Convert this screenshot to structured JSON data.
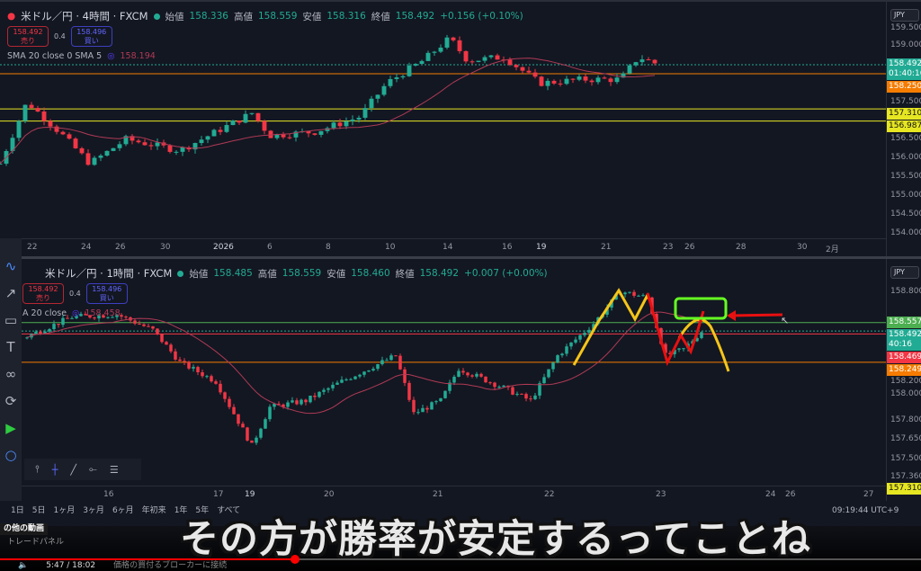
{
  "top": {
    "symbol": "米ドル／円 · 4時間 · FXCM",
    "ohlc": [
      {
        "k": "始値",
        "v": "158.336"
      },
      {
        "k": "高値",
        "v": "158.559"
      },
      {
        "k": "安値",
        "v": "158.316"
      },
      {
        "k": "終値",
        "v": "158.492"
      }
    ],
    "change": "+0.156 (+0.10%)",
    "sell_price": "158.492",
    "sell_label": "売り",
    "spread": "0.4",
    "buy_price": "158.496",
    "buy_label": "買い",
    "sma_label": "SMA 20 close 0 SMA 5",
    "sma_value": "158.194",
    "currency": "JPY",
    "yticks": [
      "159.500",
      "159.000",
      "157.500",
      "156.500",
      "156.000",
      "155.500",
      "155.000",
      "154.500",
      "154.000"
    ],
    "ymax": 159.5,
    "ymin": 154.0,
    "price_labels": [
      {
        "v": "158.492",
        "sub": "01:40:16",
        "c": "#22ab94",
        "style": "dotted"
      },
      {
        "v": "158.250",
        "c": "#f57c00"
      },
      {
        "v": "157.310",
        "c": "#e6e622",
        "dark": true
      },
      {
        "v": "156.987",
        "c": "#e6e622",
        "dark": true
      }
    ],
    "xticks": [
      "22",
      "24",
      "26",
      "30",
      "2026",
      "6",
      "8",
      "10",
      "14",
      "16",
      "19",
      "21",
      "23",
      "26",
      "28",
      "30",
      "2月"
    ],
    "path": [
      [
        0,
        155.85
      ],
      [
        30,
        157.5
      ],
      [
        70,
        156.6
      ],
      [
        100,
        155.85
      ],
      [
        140,
        156.5
      ],
      [
        200,
        156.2
      ],
      [
        280,
        157.2
      ],
      [
        300,
        156.6
      ],
      [
        350,
        156.7
      ],
      [
        400,
        157.1
      ],
      [
        430,
        158.0
      ],
      [
        470,
        158.6
      ],
      [
        500,
        159.2
      ],
      [
        520,
        158.6
      ],
      [
        560,
        158.7
      ],
      [
        600,
        158.0
      ],
      [
        650,
        158.1
      ],
      [
        690,
        158.1
      ],
      [
        710,
        158.7
      ],
      [
        733,
        158.49
      ]
    ]
  },
  "bottom": {
    "symbol": "米ドル／円 · 1時間 · FXCM",
    "ohlc": [
      {
        "k": "始値",
        "v": "158.485"
      },
      {
        "k": "高値",
        "v": "158.559"
      },
      {
        "k": "安値",
        "v": "158.460"
      },
      {
        "k": "終値",
        "v": "158.492"
      }
    ],
    "change": "+0.007 (+0.00%)",
    "sell_price": "158.492",
    "sell_label": "売り",
    "spread": "0.4",
    "buy_price": "158.496",
    "buy_label": "買い",
    "sma_label": "A 20 close",
    "sma_value": "158.458",
    "currency": "JPY",
    "yticks": [
      "158.800",
      "158.200",
      "158.000",
      "157.800",
      "157.650",
      "157.500",
      "157.360"
    ],
    "ymax": 158.8,
    "ymin": 157.5,
    "price_labels": [
      {
        "v": "158.557",
        "c": "#4caf50"
      },
      {
        "v": "158.492",
        "sub": "40:16",
        "c": "#22ab94",
        "style": "dotted"
      },
      {
        "v": "158.469",
        "c": "#f23645"
      },
      {
        "v": "158.249",
        "c": "#f57c00"
      },
      {
        "v": "157.310",
        "c": "#e6e622",
        "dark": true
      }
    ],
    "xticks": [
      "16",
      "17",
      "19",
      "20",
      "21",
      "22",
      "23",
      "24",
      "26",
      "27"
    ],
    "path": [
      [
        30,
        158.45
      ],
      [
        80,
        158.6
      ],
      [
        130,
        158.62
      ],
      [
        170,
        158.5
      ],
      [
        200,
        158.25
      ],
      [
        240,
        158.1
      ],
      [
        280,
        157.6
      ],
      [
        300,
        157.9
      ],
      [
        340,
        157.95
      ],
      [
        380,
        158.1
      ],
      [
        440,
        158.3
      ],
      [
        460,
        157.85
      ],
      [
        490,
        157.95
      ],
      [
        510,
        158.2
      ],
      [
        560,
        158.05
      ],
      [
        590,
        157.95
      ],
      [
        620,
        158.3
      ],
      [
        660,
        158.55
      ],
      [
        690,
        158.8
      ],
      [
        720,
        158.75
      ],
      [
        740,
        158.3
      ],
      [
        760,
        158.35
      ],
      [
        780,
        158.49
      ]
    ]
  },
  "left_toolbar": [
    "curve-icon",
    "arrow-icon",
    "rectangle-icon",
    "text-icon",
    "pattern-icon",
    "rotate-icon",
    "replay-icon",
    "ring-icon"
  ],
  "ranges": [
    "1日",
    "5日",
    "1ヶ月",
    "3ヶ月",
    "6ヶ月",
    "年初来",
    "1年",
    "5年",
    "すべて"
  ],
  "clock": "09:19:44 UTC+9",
  "youtube": {
    "more_videos": "の他の動画",
    "panel": "トレードパネル",
    "time": "5:47 / 18:02",
    "caption_title": "価格の買付るブローカーに接続",
    "progress": 0.32
  },
  "subtitle": "その方が勝率が安定するってことね",
  "colors": {
    "up": "#22ab94",
    "down": "#f23645",
    "sma": "#b03a55",
    "background": "#131722"
  }
}
